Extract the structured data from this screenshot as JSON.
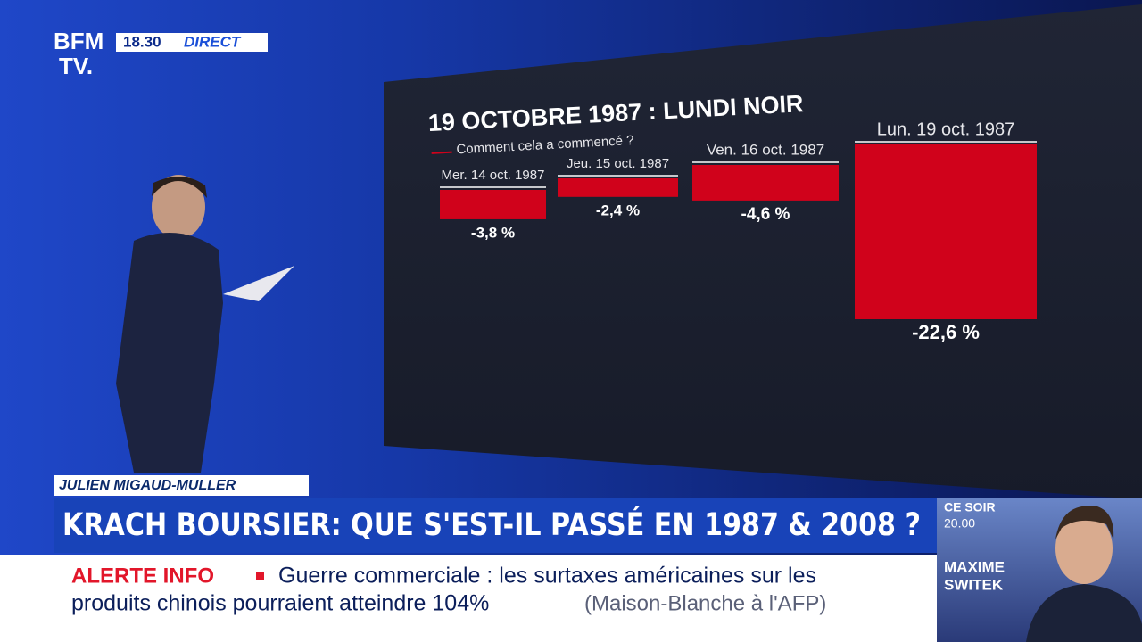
{
  "header": {
    "logo_top": "BFM",
    "logo_bottom": "TV.",
    "time": "18.30",
    "live": "DIRECT"
  },
  "chart_data": {
    "type": "bar",
    "title": "19 OCTOBRE 1987 : LUNDI NOIR",
    "subtitle": "Comment cela a commencé ?",
    "categories": [
      "Mer. 14 oct. 1987",
      "Jeu. 15 oct. 1987",
      "Ven. 16 oct. 1987",
      "Lun. 19 oct. 1987"
    ],
    "values": [
      -3.8,
      -2.4,
      -4.6,
      -22.6
    ],
    "value_labels": [
      "-3,8 %",
      "-2,4 %",
      "-4,6 %",
      "-22,6 %"
    ],
    "color": "#d0021b"
  },
  "lower_third": {
    "name": "JULIEN MIGAUD-MULLER",
    "headline": "KRACH BOURSIER: QUE S'EST-IL PASSÉ EN 1987 & 2008 ?"
  },
  "ticker": {
    "label": "ALERTE INFO",
    "line1": "Guerre commerciale : les surtaxes américaines sur les",
    "line2": "produits chinois pourraient atteindre 104%",
    "source": "(Maison-Blanche à l'AFP)"
  },
  "promo": {
    "when": "CE SOIR",
    "time": "20.00",
    "first_name": "MAXIME",
    "last_name": "SWITEK"
  }
}
